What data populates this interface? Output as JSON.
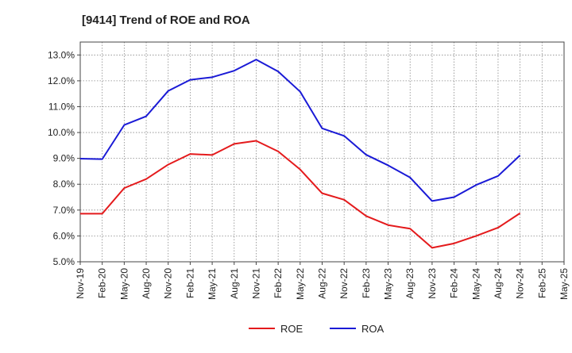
{
  "chart_data": {
    "type": "line",
    "title": "[9414]  Trend of ROE and ROA",
    "xlabel": "",
    "ylabel": "",
    "ylim": [
      5.0,
      13.5
    ],
    "yticks": [
      5.0,
      6.0,
      7.0,
      8.0,
      9.0,
      10.0,
      11.0,
      12.0,
      13.0
    ],
    "y_tick_labels": [
      "5.0%",
      "6.0%",
      "7.0%",
      "8.0%",
      "9.0%",
      "10.0%",
      "11.0%",
      "12.0%",
      "13.0%"
    ],
    "x_tick_labels": [
      "Nov-19",
      "Feb-20",
      "May-20",
      "Aug-20",
      "Nov-20",
      "Feb-21",
      "May-21",
      "Aug-21",
      "Nov-21",
      "Feb-22",
      "May-22",
      "Aug-22",
      "Nov-22",
      "Feb-23",
      "May-23",
      "Aug-23",
      "Nov-23",
      "Feb-24",
      "May-24",
      "Aug-24",
      "Nov-24",
      "Feb-25",
      "May-25"
    ],
    "grid": true,
    "legend_position": "bottom-center",
    "series": [
      {
        "name": "ROE",
        "color": "#e41a1c",
        "values": [
          6.86,
          6.86,
          7.85,
          8.2,
          8.76,
          9.17,
          9.13,
          9.56,
          9.68,
          9.27,
          8.57,
          7.65,
          7.4,
          6.77,
          6.42,
          6.28,
          5.54,
          5.71,
          6.0,
          6.32,
          6.88
        ]
      },
      {
        "name": "ROA",
        "color": "#1a1ad6",
        "values": [
          8.99,
          8.97,
          10.29,
          10.63,
          11.61,
          12.04,
          12.14,
          12.39,
          12.82,
          12.36,
          11.58,
          10.16,
          9.87,
          9.14,
          8.73,
          8.26,
          7.35,
          7.5,
          7.97,
          8.32,
          9.12
        ]
      }
    ]
  }
}
